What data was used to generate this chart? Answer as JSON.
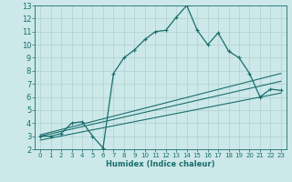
{
  "xlabel": "Humidex (Indice chaleur)",
  "bg_color": "#cce8e8",
  "grid_color": "#b0d0d0",
  "line_color": "#1a6e6e",
  "xlim": [
    -0.5,
    23.5
  ],
  "ylim": [
    2,
    13
  ],
  "xticks": [
    0,
    1,
    2,
    3,
    4,
    5,
    6,
    7,
    8,
    9,
    10,
    11,
    12,
    13,
    14,
    15,
    16,
    17,
    18,
    19,
    20,
    21,
    22,
    23
  ],
  "yticks": [
    2,
    3,
    4,
    5,
    6,
    7,
    8,
    9,
    10,
    11,
    12,
    13
  ],
  "main_line_x": [
    0,
    1,
    2,
    3,
    4,
    5,
    6,
    7,
    8,
    9,
    10,
    11,
    12,
    13,
    14,
    15,
    16,
    17,
    18,
    19,
    20,
    21,
    22,
    23
  ],
  "main_line_y": [
    3.0,
    3.0,
    3.2,
    4.0,
    4.1,
    3.0,
    2.1,
    7.8,
    9.0,
    9.6,
    10.4,
    11.0,
    11.1,
    12.1,
    13.0,
    11.1,
    10.0,
    10.9,
    9.5,
    9.0,
    7.8,
    6.0,
    6.6,
    6.5
  ],
  "reg_line1_x": [
    0,
    23
  ],
  "reg_line1_y": [
    3.1,
    7.8
  ],
  "reg_line2_x": [
    0,
    23
  ],
  "reg_line2_y": [
    3.0,
    7.2
  ],
  "reg_line3_x": [
    0,
    23
  ],
  "reg_line3_y": [
    2.7,
    6.3
  ]
}
